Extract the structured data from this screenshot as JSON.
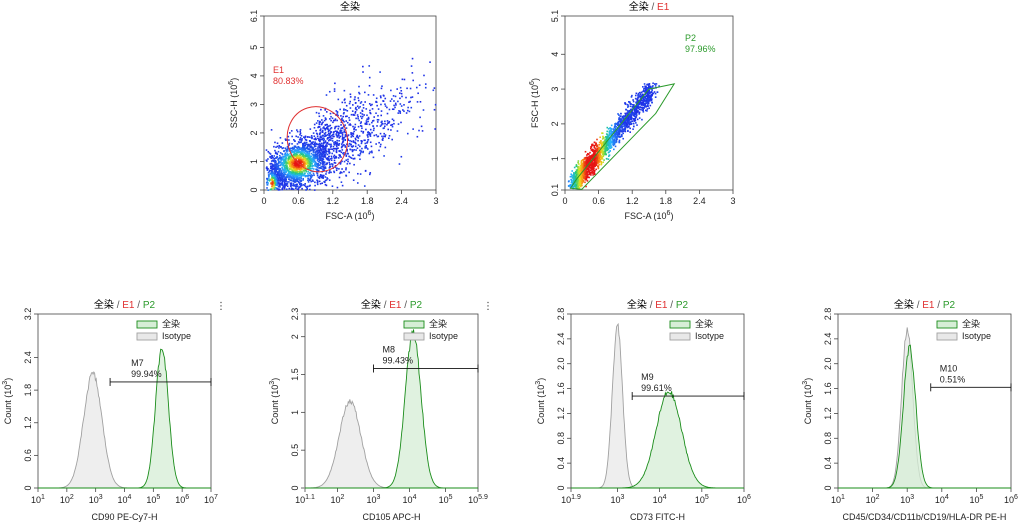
{
  "colors": {
    "green": "#1a8c1a",
    "green_fill": "#d6eed6",
    "grey_line": "#a0a0a0",
    "grey_fill": "#e8e8e8",
    "red": "#e03030",
    "gate_red": "#e03030",
    "gate_green": "#2a9a2a",
    "title_black": "#000000"
  },
  "title_parts": {
    "all": "全染",
    "sep": " / ",
    "e1": "E1",
    "p2": "P2"
  },
  "chart_data": [
    {
      "id": "scatter1",
      "type": "scatter",
      "density_plot": true,
      "title": "全染",
      "xlabel": "FSC-A",
      "xlabel_exp": "(10",
      "xlabel_sup": "6",
      "xlabel_close": ")",
      "ylabel": "SSC-H (10",
      "ylabel_sup": "6",
      "ylabel_close": ")",
      "xlim": [
        0,
        3.0
      ],
      "ylim": [
        0,
        6.1
      ],
      "xticks": [
        0,
        0.6,
        1.2,
        1.8,
        2.4,
        3
      ],
      "xtick_labels": [
        "0",
        "0.6",
        "1.2",
        "1.8",
        "2.4",
        "3"
      ],
      "yticks": [
        0,
        1,
        2,
        3,
        4,
        5,
        6.1
      ],
      "ytick_labels": [
        "0",
        "1",
        "2",
        "3",
        "4",
        "5",
        "6.1"
      ],
      "gate": {
        "name": "E1",
        "percent": "80.83%",
        "shape": "ellipse",
        "center": [
          0.93,
          1.78
        ],
        "radii": [
          0.52,
          1.15
        ],
        "rotation_deg": -18
      },
      "population_centers": [
        {
          "x": 0.58,
          "y": 0.95,
          "weight": 0.7
        },
        {
          "x": 0.15,
          "y": 0.25,
          "weight": 0.1
        },
        {
          "x": 1.2,
          "y": 2.2,
          "weight": 0.2
        }
      ]
    },
    {
      "id": "scatter2",
      "type": "scatter",
      "density_plot": true,
      "title": "全染 / E1",
      "xlabel": "FSC-A",
      "xlabel_exp": "(10",
      "xlabel_sup": "6",
      "xlabel_close": ")",
      "ylabel": "FSC-H (10",
      "ylabel_sup": "6",
      "ylabel_close": ")",
      "xlim": [
        0,
        3.0
      ],
      "ylim": [
        0.1,
        5.1
      ],
      "xticks": [
        0,
        0.6,
        1.2,
        1.8,
        2.4,
        3
      ],
      "xtick_labels": [
        "0",
        "0.6",
        "1.2",
        "1.8",
        "2.4",
        "3"
      ],
      "yticks": [
        0.1,
        1,
        2,
        3,
        4,
        5.1
      ],
      "ytick_labels": [
        "0.1",
        "1",
        "2",
        "3",
        "4",
        "5.1"
      ],
      "gate": {
        "name": "P2",
        "percent": "97.96%",
        "shape": "polygon",
        "vertices": [
          [
            0.1,
            0.15
          ],
          [
            0.2,
            0.4
          ],
          [
            1.5,
            3.0
          ],
          [
            1.95,
            3.15
          ],
          [
            1.62,
            2.3
          ],
          [
            0.3,
            0.12
          ]
        ]
      }
    },
    {
      "id": "hist1",
      "type": "histogram",
      "title": "全染 / E1 / P2",
      "show_marker": true,
      "xlabel": "CD90 PE-Cy7-H",
      "ylabel": "Count (10",
      "ylabel_sup": "3",
      "ylabel_close": ")",
      "xlog": true,
      "xlim": [
        1,
        7
      ],
      "xticks": [
        1,
        2,
        3,
        4,
        5,
        6,
        7
      ],
      "xtick_base": [
        "10",
        "10",
        "10",
        "10",
        "10",
        "10",
        "10"
      ],
      "xtick_exp": [
        "1",
        "2",
        "3",
        "4",
        "5",
        "6",
        "7"
      ],
      "ylim": [
        0,
        3.2
      ],
      "yticks": [
        0,
        0.6,
        1.2,
        1.8,
        2.4,
        3.2
      ],
      "ytick_labels": [
        "0",
        "0.6",
        "1.2",
        "1.8",
        "2.4",
        "3.2"
      ],
      "series": [
        {
          "name": "全染",
          "center": 5.3,
          "sigma": 0.22,
          "peak": 2.6
        },
        {
          "name": "Isotype",
          "center": 2.9,
          "sigma": 0.32,
          "peak": 2.1
        }
      ],
      "marker": {
        "name": "M7",
        "percent": "99.94%",
        "from": 3.5,
        "to": 7.0,
        "y": 1.95
      }
    },
    {
      "id": "hist2",
      "type": "histogram",
      "title": "全染 / E1 / P2",
      "show_marker": true,
      "xlabel": "CD105 APC-H",
      "ylabel": "Count (10",
      "ylabel_sup": "3",
      "ylabel_close": ")",
      "xlog": true,
      "xlim": [
        1.1,
        5.9
      ],
      "xticks": [
        1.1,
        2,
        3,
        4,
        5,
        5.9
      ],
      "xtick_base": [
        "10",
        "10",
        "10",
        "10",
        "10",
        "10"
      ],
      "xtick_exp": [
        "1.1",
        "2",
        "3",
        "4",
        "5",
        "5.9"
      ],
      "ylim": [
        0,
        2.3
      ],
      "yticks": [
        0,
        0.5,
        1,
        1.5,
        2,
        2.3
      ],
      "ytick_labels": [
        "0",
        "0.5",
        "1",
        "1.5",
        "2",
        "2.3"
      ],
      "series": [
        {
          "name": "全染",
          "center": 4.1,
          "sigma": 0.22,
          "peak": 2.05
        },
        {
          "name": "Isotype",
          "center": 2.35,
          "sigma": 0.3,
          "peak": 1.15
        }
      ],
      "marker": {
        "name": "M8",
        "percent": "99.43%",
        "from": 3.0,
        "to": 5.9,
        "y": 1.58
      }
    },
    {
      "id": "hist3",
      "type": "histogram",
      "title": "全染 / E1 / P2",
      "show_marker": true,
      "xlabel": "CD73 FITC-H",
      "ylabel": "Count (10",
      "ylabel_sup": "3",
      "ylabel_close": ")",
      "xlog": true,
      "xlim": [
        1.9,
        6
      ],
      "xticks": [
        1.9,
        3,
        4,
        5,
        6
      ],
      "xtick_base": [
        "10",
        "10",
        "10",
        "10",
        "10"
      ],
      "xtick_exp": [
        "1.9",
        "3",
        "4",
        "5",
        "6"
      ],
      "ylim": [
        0,
        2.8
      ],
      "yticks": [
        0,
        0.4,
        0.8,
        1.2,
        1.6,
        2.0,
        2.4,
        2.8
      ],
      "ytick_labels": [
        "0",
        "0.4",
        "0.8",
        "1.2",
        "1.6",
        "2.0",
        "2.4",
        "2.8"
      ],
      "series": [
        {
          "name": "全染",
          "center": 4.22,
          "sigma": 0.3,
          "peak": 1.55
        },
        {
          "name": "Isotype",
          "center": 3.0,
          "sigma": 0.12,
          "peak": 2.6
        }
      ],
      "marker": {
        "name": "M9",
        "percent": "99.61%",
        "from": 3.35,
        "to": 6.0,
        "y": 1.48
      }
    },
    {
      "id": "hist4",
      "type": "histogram",
      "title": "全染 / E1 / P2",
      "show_marker": true,
      "xlabel": "CD45/CD34/CD11b/CD19/HLA-DR PE-H",
      "ylabel": "Count (10",
      "ylabel_sup": "3",
      "ylabel_close": ")",
      "xlog": true,
      "xlim": [
        1,
        6
      ],
      "xticks": [
        1,
        2,
        3,
        4,
        5,
        6
      ],
      "xtick_base": [
        "10",
        "10",
        "10",
        "10",
        "10",
        "10"
      ],
      "xtick_exp": [
        "1",
        "2",
        "3",
        "4",
        "5",
        "6"
      ],
      "ylim": [
        0,
        2.8
      ],
      "yticks": [
        0,
        0.4,
        0.8,
        1.2,
        1.6,
        2.0,
        2.4,
        2.8
      ],
      "ytick_labels": [
        "0",
        "0.4",
        "0.8",
        "1.2",
        "1.6",
        "2.0",
        "2.4",
        "2.8"
      ],
      "series": [
        {
          "name": "全染",
          "center": 3.07,
          "sigma": 0.18,
          "peak": 2.25
        },
        {
          "name": "Isotype",
          "center": 3.0,
          "sigma": 0.16,
          "peak": 2.55
        }
      ],
      "marker": {
        "name": "M10",
        "percent": "0.51%",
        "from": 3.68,
        "to": 6.0,
        "y": 1.62
      }
    }
  ]
}
